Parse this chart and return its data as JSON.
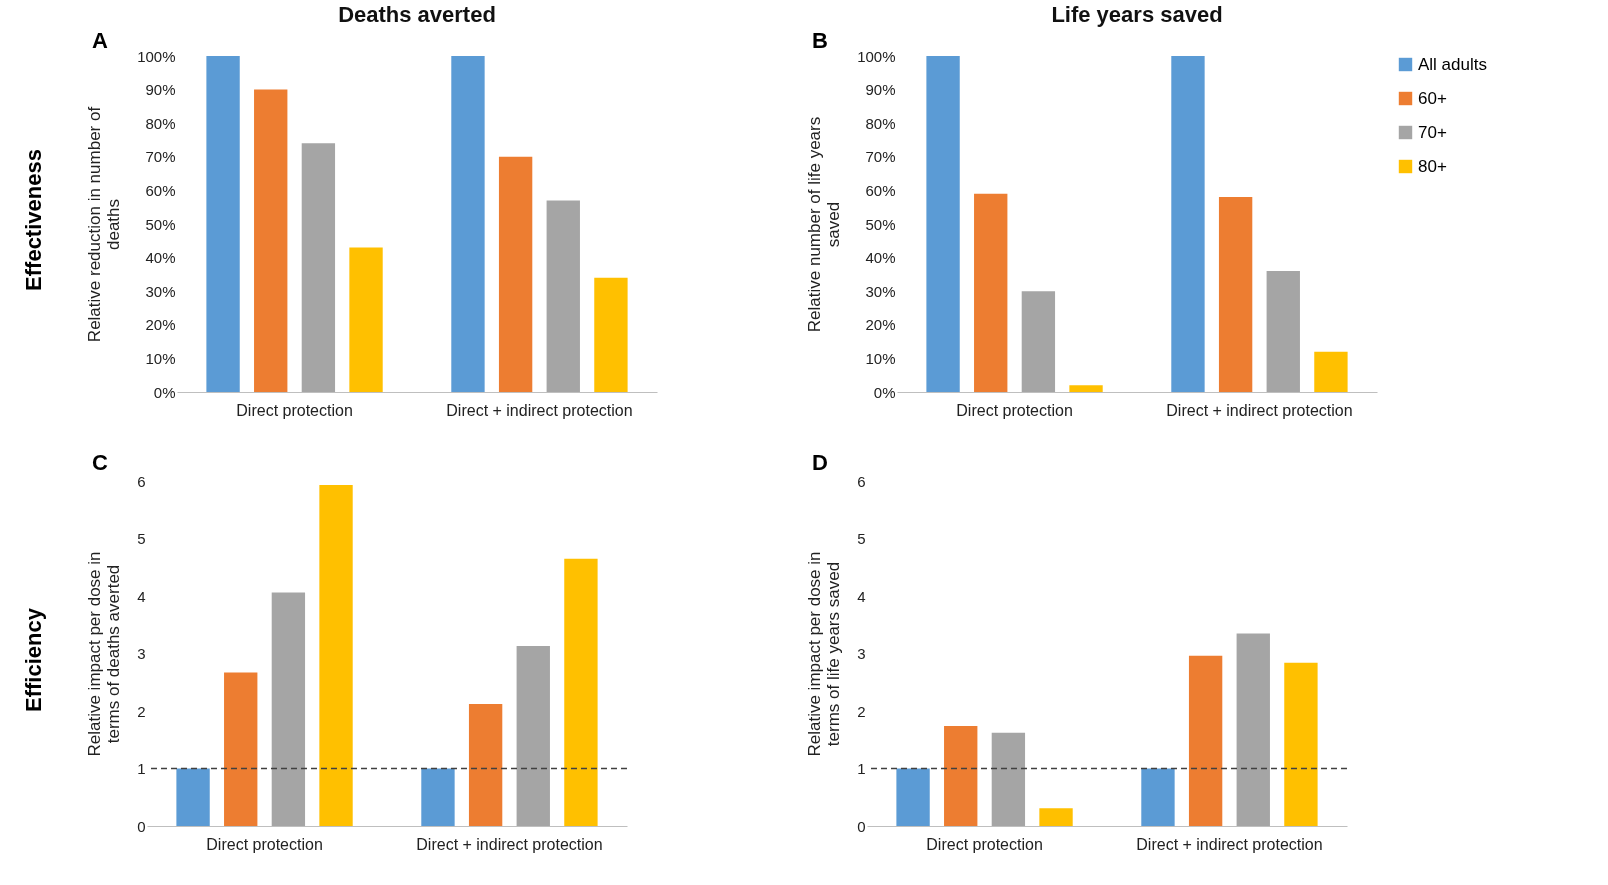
{
  "chart_data": [
    {
      "type": "bar",
      "title": "Deaths averted",
      "annotations": [
        "A",
        "Effectiveness"
      ],
      "ylabel": "Relative reduction in number of deaths",
      "categories": [
        "Direct protection",
        "Direct + indirect protection"
      ],
      "series": [
        {
          "color": "#5b9bd5",
          "values": [
            100,
            100
          ]
        },
        {
          "color": "#ed7d31",
          "values": [
            90,
            70
          ]
        },
        {
          "color": "#a5a5a5",
          "values": [
            74,
            57
          ]
        },
        {
          "color": "#ffc000",
          "values": [
            43,
            34
          ]
        }
      ],
      "ylim": [
        0,
        100
      ],
      "yticks": [
        {
          "value": 0,
          "label": "0%"
        },
        {
          "value": 10,
          "label": "10%"
        },
        {
          "value": 20,
          "label": "20%"
        },
        {
          "value": 30,
          "label": "30%"
        },
        {
          "value": 40,
          "label": "40%"
        },
        {
          "value": 50,
          "label": "50%"
        },
        {
          "value": 60,
          "label": "60%"
        },
        {
          "value": 70,
          "label": "70%"
        },
        {
          "value": 80,
          "label": "80%"
        },
        {
          "value": 90,
          "label": "90%"
        },
        {
          "value": 100,
          "label": "100%"
        }
      ],
      "grid": false
    },
    {
      "type": "bar",
      "title": "Life years saved",
      "annotations": [
        "B"
      ],
      "ylabel": "Relative number of life years saved",
      "categories": [
        "Direct protection",
        "Direct + indirect protection"
      ],
      "series": [
        {
          "name": "All adults",
          "color": "#5b9bd5",
          "values": [
            100,
            100
          ]
        },
        {
          "name": "60+",
          "color": "#ed7d31",
          "values": [
            59,
            58
          ]
        },
        {
          "name": "70+",
          "color": "#a5a5a5",
          "values": [
            30,
            36
          ]
        },
        {
          "name": "80+",
          "color": "#ffc000",
          "values": [
            2,
            12
          ]
        }
      ],
      "ylim": [
        0,
        100
      ],
      "yticks": [
        {
          "value": 0,
          "label": "0%"
        },
        {
          "value": 10,
          "label": "10%"
        },
        {
          "value": 20,
          "label": "20%"
        },
        {
          "value": 30,
          "label": "30%"
        },
        {
          "value": 40,
          "label": "40%"
        },
        {
          "value": 50,
          "label": "50%"
        },
        {
          "value": 60,
          "label": "60%"
        },
        {
          "value": 70,
          "label": "70%"
        },
        {
          "value": 80,
          "label": "80%"
        },
        {
          "value": 90,
          "label": "90%"
        },
        {
          "value": 100,
          "label": "100%"
        }
      ],
      "grid": false,
      "legend": "right"
    },
    {
      "type": "bar",
      "annotations": [
        "C",
        "Efficiency"
      ],
      "ylabel": "Relative impact per dose in terms of deaths averted",
      "categories": [
        "Direct protection",
        "Direct + indirect protection"
      ],
      "series": [
        {
          "color": "#5b9bd5",
          "values": [
            1,
            1
          ]
        },
        {
          "color": "#ed7d31",
          "values": [
            2.67,
            2.12
          ]
        },
        {
          "color": "#a5a5a5",
          "values": [
            4.06,
            3.13
          ]
        },
        {
          "color": "#ffc000",
          "values": [
            5.93,
            4.65
          ]
        }
      ],
      "ylim": [
        0,
        6
      ],
      "yticks": [
        0,
        1,
        2,
        3,
        4,
        5,
        6
      ],
      "grid": false,
      "ref_lines": [
        {
          "axis": "y",
          "value": 1,
          "color": "#404040",
          "line_style": "dashed"
        }
      ]
    },
    {
      "type": "bar",
      "annotations": [
        "D"
      ],
      "ylabel": "Relative impact per dose in terms of life years saved",
      "categories": [
        "Direct protection",
        "Direct + indirect protection"
      ],
      "series": [
        {
          "color": "#5b9bd5",
          "values": [
            1,
            1
          ]
        },
        {
          "color": "#ed7d31",
          "values": [
            1.74,
            2.96
          ]
        },
        {
          "color": "#a5a5a5",
          "values": [
            1.62,
            3.35
          ]
        },
        {
          "color": "#ffc000",
          "values": [
            0.31,
            2.84
          ]
        }
      ],
      "ylim": [
        0,
        6
      ],
      "yticks": [
        0,
        1,
        2,
        3,
        4,
        5,
        6
      ],
      "grid": false,
      "ref_lines": [
        {
          "axis": "y",
          "value": 1,
          "color": "#404040",
          "line_style": "dashed"
        }
      ]
    }
  ]
}
